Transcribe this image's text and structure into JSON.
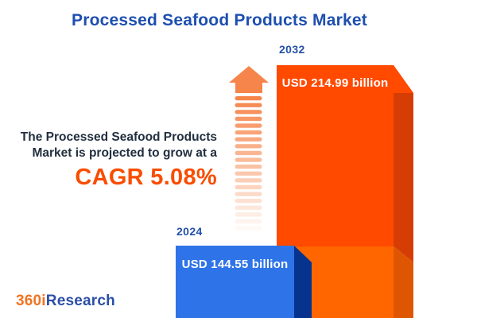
{
  "title": "Processed Seafood Products Market",
  "projection": {
    "line1": "The Processed Seafood Products",
    "line2": "Market is projected to grow at a",
    "cagr": "CAGR 5.08%"
  },
  "chart_data": {
    "type": "bar",
    "title": "Processed Seafood Products Market",
    "categories": [
      "2024",
      "2032"
    ],
    "values": [
      144.55,
      214.99
    ],
    "unit": "USD billion",
    "value_labels": [
      "USD 144.55 billion",
      "USD 214.99 billion"
    ],
    "cagr_percent": 5.08,
    "annotation": "The Processed Seafood Products Market is projected to grow at a CAGR 5.08%",
    "legend_position": "none",
    "grid": false,
    "style": "3d-infographic-bars, bars cropped at bottom edge"
  },
  "bars": {
    "b2024": {
      "year": "2024",
      "label": "USD 144.55 billion"
    },
    "b2032": {
      "year": "2032",
      "label": "USD 214.99 billion"
    }
  },
  "colors": {
    "orange_front": "#FF4A00",
    "orange_front_lower": "#FF6600",
    "orange_side_dark": "#D63D04",
    "orange_side_mid": "#DE5602",
    "blue_front": "#2E74E8",
    "blue_side": "#06338E",
    "arrow": "#F6854B",
    "title_blue": "#1D4FAF",
    "cagr_orange": "#F94D00",
    "year_label_blue": "#2450A8",
    "text_dark": "#222F3F",
    "logo_orange": "#F07422",
    "logo_blue": "#2B4FA5"
  },
  "logo": {
    "part1": "360i",
    "part2": "Research"
  }
}
